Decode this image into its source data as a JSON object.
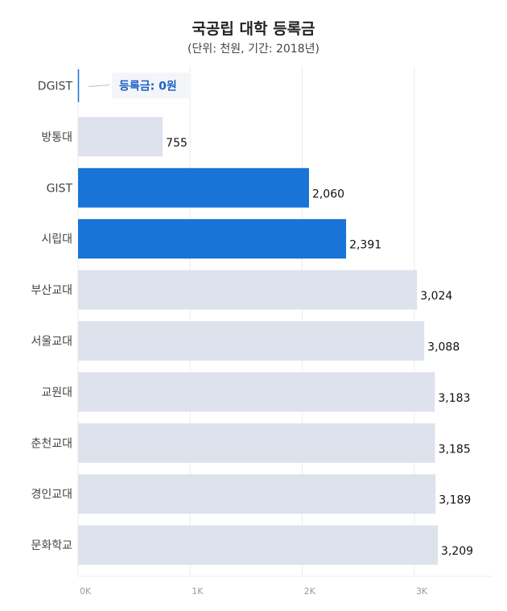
{
  "chart_data": {
    "type": "bar",
    "orientation": "horizontal",
    "title": "국공립 대학 등록금",
    "subtitle": "(단위: 천원, 기간: 2018년)",
    "xlabel": "",
    "ylabel": "",
    "categories": [
      "DGIST",
      "방통대",
      "GIST",
      "시립대",
      "부산교대",
      "서울교대",
      "교원대",
      "춘천교대",
      "경인교대",
      "문화학교"
    ],
    "values": [
      0,
      755,
      2060,
      2391,
      3024,
      3088,
      3183,
      3185,
      3189,
      3209
    ],
    "value_labels": [
      "",
      "755",
      "2,060",
      "2,391",
      "3,024",
      "3,088",
      "3,183",
      "3,185",
      "3,189",
      "3,209"
    ],
    "highlighted": [
      false,
      false,
      true,
      true,
      false,
      false,
      false,
      false,
      false,
      false
    ],
    "xlim": [
      0,
      3800
    ],
    "x_ticks": [
      0,
      1000,
      2000,
      3000
    ],
    "x_tick_labels": [
      "0K",
      "1K",
      "2K",
      "3K"
    ],
    "grid": true,
    "annotation": {
      "category": "DGIST",
      "text": "등록금: 0원"
    },
    "colors": {
      "bar": "#dde2ec",
      "highlight": "#1a73d6",
      "annotation_text": "#1a5fc4",
      "annotation_bg": "#f4f5f9",
      "grid": "#ececec"
    }
  }
}
